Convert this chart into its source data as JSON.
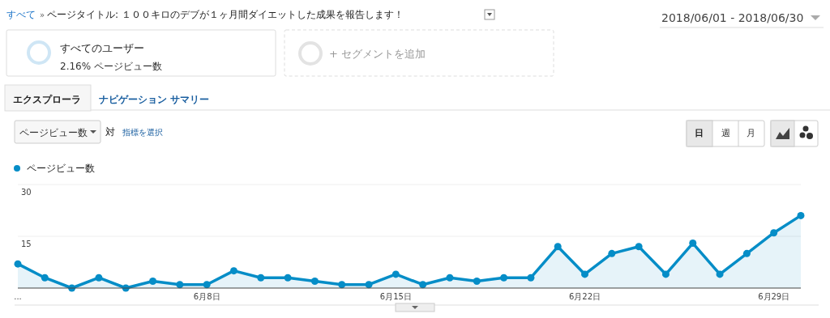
{
  "chart_data": {
    "type": "area",
    "title": "ページタイトル: １００キロのデブが１ヶ月間ダイエットした成果を報告します！",
    "annotations": [
      "すべて",
      "»",
      "2018/06/01 - 2018/06/30",
      "すべてのユーザー",
      "2.16% ページビュー数",
      "+ セグメントを追加",
      "エクスプローラ",
      "ナビゲーション サマリー",
      "ページビュー数",
      "対",
      "指標を選択",
      "日",
      "週",
      "月"
    ],
    "x": [
      "2018-06-01",
      "2018-06-02",
      "2018-06-03",
      "2018-06-04",
      "2018-06-05",
      "2018-06-06",
      "2018-06-07",
      "2018-06-08",
      "2018-06-09",
      "2018-06-10",
      "2018-06-11",
      "2018-06-12",
      "2018-06-13",
      "2018-06-14",
      "2018-06-15",
      "2018-06-16",
      "2018-06-17",
      "2018-06-18",
      "2018-06-19",
      "2018-06-20",
      "2018-06-21",
      "2018-06-22",
      "2018-06-23",
      "2018-06-24",
      "2018-06-25",
      "2018-06-26",
      "2018-06-27",
      "2018-06-28",
      "2018-06-29",
      "2018-06-30"
    ],
    "series": [
      {
        "name": "ページビュー数",
        "color": "#058dc7",
        "values": [
          7,
          3,
          0,
          3,
          0,
          2,
          1,
          1,
          5,
          3,
          3,
          2,
          1,
          1,
          4,
          1,
          3,
          2,
          3,
          3,
          12,
          4,
          10,
          12,
          4,
          13,
          4,
          10,
          16,
          21
        ]
      }
    ],
    "xlim": [
      "2018-06-01",
      "2018-06-30"
    ],
    "xticks": [
      {
        "value": "2018-06-01",
        "label": "..."
      },
      {
        "value": "2018-06-08",
        "label": "6月8日"
      },
      {
        "value": "2018-06-15",
        "label": "6月15日"
      },
      {
        "value": "2018-06-22",
        "label": "6月22日"
      },
      {
        "value": "2018-06-29",
        "label": "6月29日"
      }
    ],
    "ylim": [
      0,
      30
    ],
    "yticks": [
      15,
      30
    ],
    "grid": "y",
    "legend": "top left",
    "marker": "circle",
    "line_style": "solid"
  }
}
